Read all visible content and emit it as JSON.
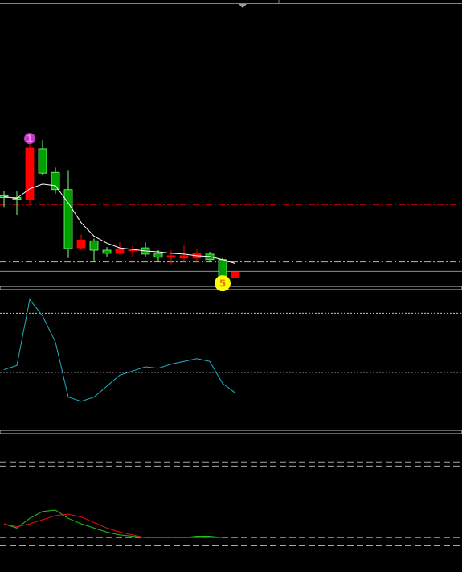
{
  "chart_data": [
    {
      "type": "candlestick",
      "categories": [
        null,
        null,
        null,
        null,
        null,
        null,
        null,
        null,
        null,
        null,
        null,
        null,
        null,
        null,
        null,
        null,
        null,
        null,
        null
      ],
      "open": [
        112,
        110,
        175,
        143,
        122,
        47,
        58,
        45,
        41,
        47,
        46,
        40,
        36,
        38,
        38,
        41,
        33,
        10,
        17
      ],
      "close": [
        114,
        112,
        109,
        174,
        144,
        122,
        48,
        57,
        45,
        41,
        44,
        48,
        41,
        36,
        35,
        35,
        40,
        33,
        10
      ],
      "high": [
        120,
        120,
        185,
        185,
        150,
        147,
        65,
        60,
        49,
        55,
        52,
        55,
        45,
        45,
        52,
        47,
        43,
        35,
        19
      ],
      "low": [
        100,
        90,
        105,
        140,
        117,
        35,
        45,
        30,
        37,
        39,
        37,
        37,
        30,
        27,
        30,
        30,
        30,
        5,
        9
      ],
      "up_color": "#00a000",
      "up_outline": "#80ff80",
      "down_color": "#ff0000",
      "series": [
        {
          "color": "#ffffff",
          "values": [
            113,
            111,
            123,
            129,
            127,
            105,
            80,
            63,
            54,
            48,
            46,
            44,
            43,
            41,
            40,
            38,
            37,
            33,
            28
          ]
        }
      ],
      "levels": [
        {
          "value": 103,
          "color": "#c00000",
          "style": "dashdot"
        },
        {
          "value": 30,
          "color": "#c0c060",
          "style": "dashdot"
        },
        {
          "value": 18,
          "color": "#8090a0",
          "style": "solid"
        }
      ],
      "annotations": [
        {
          "text": "1",
          "index": 2,
          "color": "#c040c0",
          "text_color": "#ff80ff",
          "side": "above"
        },
        {
          "text": "5",
          "index": 17,
          "color": "#ffff00",
          "text_color": "#e08000",
          "side": "below"
        }
      ],
      "ylim": [
        0,
        355
      ]
    },
    {
      "type": "line",
      "categories": [
        null,
        null,
        null,
        null,
        null,
        null,
        null,
        null,
        null,
        null,
        null,
        null,
        null,
        null,
        null,
        null,
        null,
        null,
        null
      ],
      "series": [
        {
          "color": "#20b0c0",
          "values": [
            43,
            46,
            94,
            82,
            63,
            23,
            20,
            23,
            31,
            39,
            42,
            45,
            44,
            47,
            49,
            51,
            49,
            33,
            26
          ]
        }
      ],
      "levels": [
        {
          "value": 84,
          "color": "#c0c0c0",
          "style": "dotted"
        },
        {
          "value": 41,
          "color": "#c0c0c0",
          "style": "dotted"
        }
      ],
      "ylim": [
        0,
        100
      ]
    },
    {
      "type": "line",
      "categories": [
        null,
        null,
        null,
        null,
        null,
        null,
        null,
        null,
        null,
        null,
        null,
        null,
        null,
        null,
        null,
        null,
        null,
        null,
        null
      ],
      "series": [
        {
          "color": "#20c020",
          "values": [
            35,
            32,
            39,
            44,
            45,
            39,
            35,
            32,
            29,
            27,
            26,
            25,
            25,
            25,
            25,
            26,
            26,
            25,
            null
          ]
        },
        {
          "color": "#e01010",
          "values": [
            35,
            33,
            35,
            38,
            41,
            42,
            40,
            36,
            32,
            29,
            27,
            25,
            25,
            25,
            25,
            25,
            25,
            25,
            null
          ]
        }
      ],
      "levels": [
        {
          "value": 80,
          "color": "#a0a8b0",
          "style": "dashed"
        },
        {
          "value": 77,
          "color": "#a0a8b0",
          "style": "dashed"
        },
        {
          "value": 25,
          "color": "#a0a8b0",
          "style": "dashed"
        },
        {
          "value": 19,
          "color": "#a0a8b0",
          "style": "dashed"
        }
      ],
      "ylim": [
        0,
        100
      ]
    }
  ]
}
